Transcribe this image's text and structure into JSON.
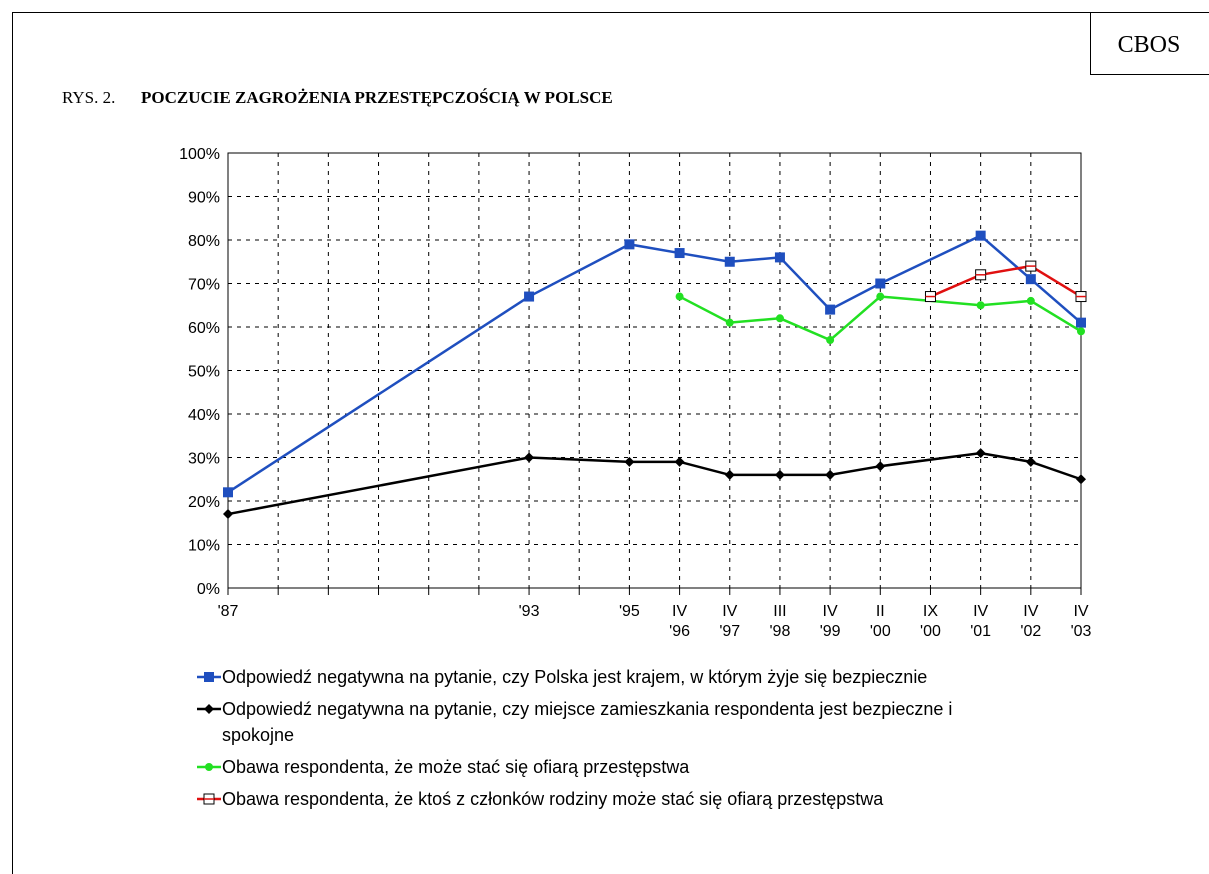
{
  "chart_data": {
    "type": "line",
    "badge": "CBOS",
    "figure_label": "RYS. 2.",
    "title": "POCZUCIE ZAGROŻENIA PRZESTĘPCZOŚCIĄ W POLSCE",
    "categories": [
      "'87",
      null,
      null,
      null,
      null,
      null,
      "'93",
      null,
      "'95",
      "IV '96",
      "IV '97",
      "III '98",
      "IV '99",
      "II '00",
      "IX '00",
      "IV '01",
      "IV '02",
      "IV '03"
    ],
    "span_gaps": true,
    "grid": true,
    "ylim": [
      0,
      100
    ],
    "yticks": [
      {
        "value": 0,
        "label": "0%"
      },
      {
        "value": 10,
        "label": "10%"
      },
      {
        "value": 20,
        "label": "20%"
      },
      {
        "value": 30,
        "label": "30%"
      },
      {
        "value": 40,
        "label": "40%"
      },
      {
        "value": 50,
        "label": "50%"
      },
      {
        "value": 60,
        "label": "60%"
      },
      {
        "value": 70,
        "label": "70%"
      },
      {
        "value": 80,
        "label": "80%"
      },
      {
        "value": 90,
        "label": "90%"
      },
      {
        "value": 100,
        "label": "100%"
      }
    ],
    "series": [
      {
        "name": "Odpowiedź negatywna na pytanie, czy Polska jest krajem, w którym żyje się bezpiecznie",
        "color": "#1f4fbf",
        "marker": "square",
        "values": [
          22,
          null,
          null,
          null,
          null,
          null,
          67,
          null,
          79,
          77,
          75,
          76,
          64,
          70,
          null,
          81,
          71,
          61
        ]
      },
      {
        "name": "Odpowiedź negatywna na pytanie, czy miejsce zamieszkania respondenta jest bezpieczne i spokojne",
        "color": "#000000",
        "marker": "diamond",
        "values": [
          17,
          null,
          null,
          null,
          null,
          null,
          30,
          null,
          29,
          29,
          26,
          26,
          26,
          28,
          null,
          31,
          29,
          25
        ]
      },
      {
        "name": "Obawa respondenta, że może stać się ofiarą przestępstwa",
        "color": "#22e022",
        "marker": "circle",
        "values": [
          null,
          null,
          null,
          null,
          null,
          null,
          null,
          null,
          null,
          67,
          61,
          62,
          57,
          67,
          null,
          65,
          66,
          59
        ]
      },
      {
        "name": "Obawa respondenta, że ktoś z członków rodziny może stać się ofiarą przestępstwa",
        "color": "#e01010",
        "marker": "open-square",
        "values": [
          null,
          null,
          null,
          null,
          null,
          null,
          null,
          null,
          null,
          null,
          null,
          null,
          null,
          null,
          67,
          72,
          74,
          67
        ]
      }
    ]
  }
}
